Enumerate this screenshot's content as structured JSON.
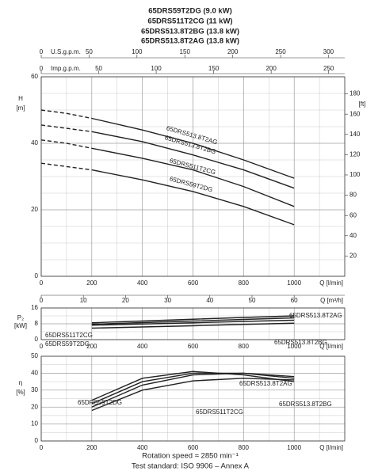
{
  "header": {
    "titles": [
      "65DRS59T2DG (9.0 kW)",
      "65DRS511T2CG (11 kW)",
      "65DRS513.8T2BG (13.8 kW)",
      "65DRS513.8T2AG (13.8 kW)"
    ]
  },
  "footer": {
    "speed": "Rotation speed ≈ 2850 min⁻¹",
    "standard": "Test standard: ISO 9906 – Annex A"
  },
  "chart_data": [
    {
      "type": "line",
      "y_label": "H",
      "y_unit": "[m]",
      "y2_unit": "[ft]",
      "x_label": "Q [l/min]",
      "x": [
        0,
        100,
        200,
        400,
        600,
        800,
        1000
      ],
      "dashed_below_x": 200,
      "xlim": [
        0,
        1200
      ],
      "xticks": [
        0,
        200,
        400,
        600,
        800,
        1000
      ],
      "ylim": [
        0,
        60
      ],
      "yticks": [
        0,
        20,
        40,
        60
      ],
      "y2lim": [
        0,
        196.85
      ],
      "y2ticks": [
        20,
        40,
        60,
        80,
        100,
        120,
        140,
        160,
        180
      ],
      "grid": true,
      "top_axes": [
        {
          "label": "U.S.g.p.m.",
          "xlim": [
            0,
            317
          ],
          "xticks": [
            0,
            50,
            100,
            150,
            200,
            250,
            300
          ]
        },
        {
          "label": "Imp.g.p.m.",
          "xlim": [
            0,
            264
          ],
          "xticks": [
            0,
            50,
            100,
            150,
            200,
            250
          ]
        }
      ],
      "bottom_axes": [
        {
          "label": "Q [m³/h]",
          "xlim": [
            0,
            72
          ],
          "xticks": [
            0,
            10,
            20,
            30,
            40,
            50,
            60
          ]
        }
      ],
      "series": [
        {
          "name": "65DRS513.8T2AG",
          "color": "#222222",
          "values": [
            50,
            49,
            47.5,
            44,
            40,
            35,
            29.5
          ]
        },
        {
          "name": "65DRS513.8T2BG",
          "color": "#222222",
          "values": [
            45.5,
            44.5,
            43.5,
            40.5,
            36.5,
            32,
            26.5
          ]
        },
        {
          "name": "65DRS511T2CG",
          "color": "#222222",
          "values": [
            41,
            40,
            38.5,
            35.5,
            32,
            27,
            21
          ]
        },
        {
          "name": "65DRS59T2DG",
          "color": "#222222",
          "values": [
            34,
            33,
            32,
            29,
            25.5,
            21,
            15.5
          ]
        }
      ]
    },
    {
      "type": "line",
      "y_label": "P₂",
      "y_unit": "[kW]",
      "x_label": "Q [l/min]",
      "x": [
        200,
        400,
        600,
        800,
        1000
      ],
      "xlim": [
        0,
        1200
      ],
      "xticks": [
        0,
        200,
        400,
        600,
        800,
        1000
      ],
      "ylim": [
        0,
        16
      ],
      "yticks": [
        0,
        8,
        16
      ],
      "grid": true,
      "series": [
        {
          "name": "65DRS513.8T2AG",
          "color": "#222222",
          "values": [
            8.5,
            9.4,
            10.3,
            11.2,
            12
          ]
        },
        {
          "name": "65DRS513.8T2BG",
          "color": "#222222",
          "values": [
            7.8,
            8.6,
            9.4,
            10.2,
            11
          ]
        },
        {
          "name": "65DRS511T2CG",
          "color": "#222222",
          "values": [
            7.3,
            7.9,
            8.5,
            9.2,
            9.8
          ]
        },
        {
          "name": "65DRS59T2DG",
          "color": "#222222",
          "values": [
            5.8,
            6.4,
            7,
            7.7,
            8.3
          ]
        }
      ]
    },
    {
      "type": "line",
      "y_label": "η",
      "y_unit": "[%]",
      "x_label": "Q [l/min]",
      "x": [
        200,
        400,
        600,
        800,
        1000
      ],
      "xlim": [
        0,
        1200
      ],
      "xticks": [
        0,
        200,
        400,
        600,
        800,
        1000
      ],
      "ylim": [
        0,
        50
      ],
      "yticks": [
        0,
        10,
        20,
        30,
        40,
        50
      ],
      "grid": true,
      "series": [
        {
          "name": "65DRS513.8T2AG",
          "color": "#222222",
          "values": [
            22,
            35,
            40,
            40,
            37
          ]
        },
        {
          "name": "65DRS513.8T2BG",
          "color": "#222222",
          "values": [
            20,
            33,
            39,
            40,
            38
          ]
        },
        {
          "name": "65DRS511T2CG",
          "color": "#222222",
          "values": [
            18,
            30,
            35.5,
            37,
            36
          ]
        },
        {
          "name": "65DRS59T2DG",
          "color": "#222222",
          "values": [
            24,
            37,
            41,
            39,
            35
          ]
        }
      ]
    }
  ]
}
